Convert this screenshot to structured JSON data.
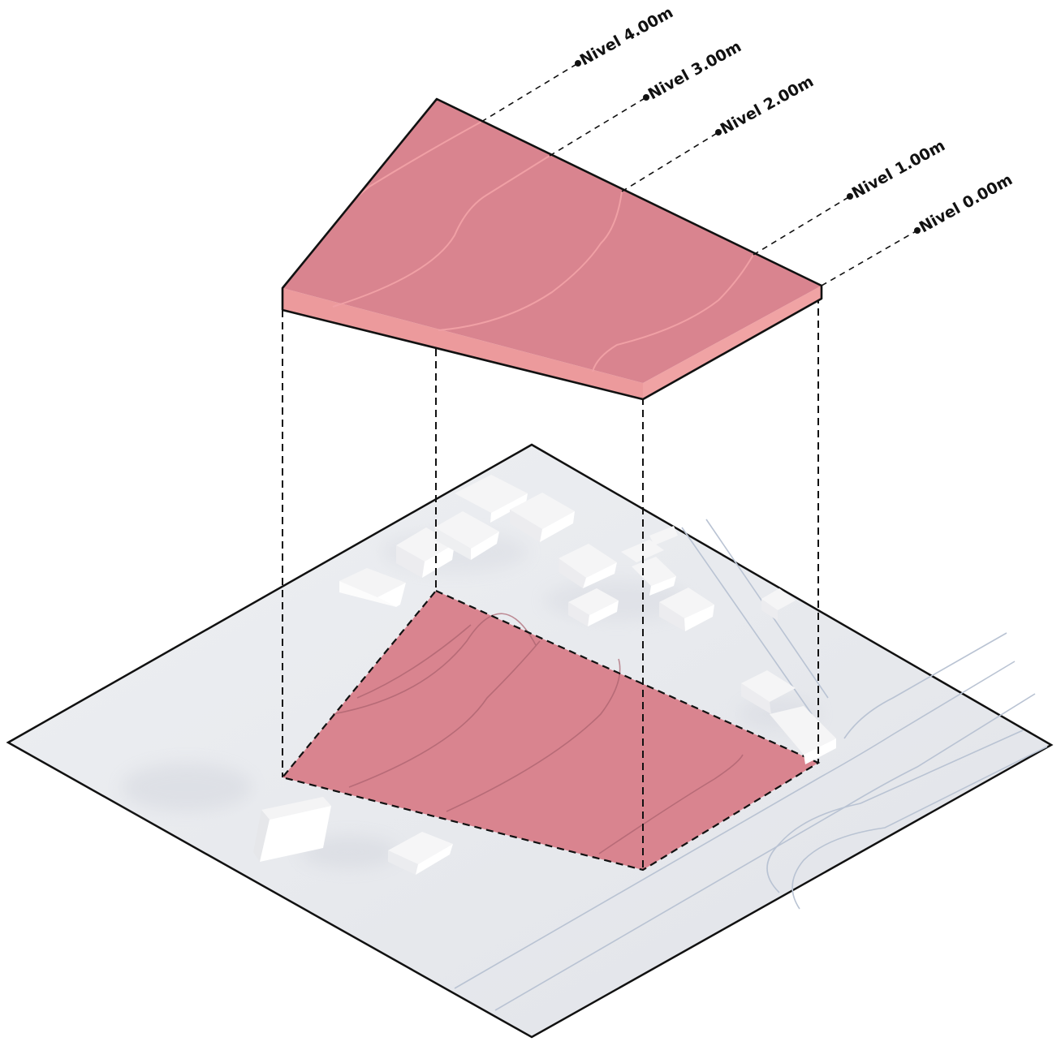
{
  "levels": [
    {
      "label": "Nivel 4.00m"
    },
    {
      "label": "Nivel 3.00m"
    },
    {
      "label": "Nivel 2.00m"
    },
    {
      "label": "Nivel 1.00m"
    },
    {
      "label": "Nivel 0.00m"
    }
  ],
  "colors": {
    "terrain_fill": "#d9848f",
    "terrain_edge": "#e8a3a8",
    "terrain_side": "#ec9a9c",
    "base_fill": "#e4e6ea",
    "building_top": "#f7f7f7",
    "building_side": "#ffffff",
    "outline": "#111111"
  },
  "icons": [
    "level-marker-dot"
  ]
}
